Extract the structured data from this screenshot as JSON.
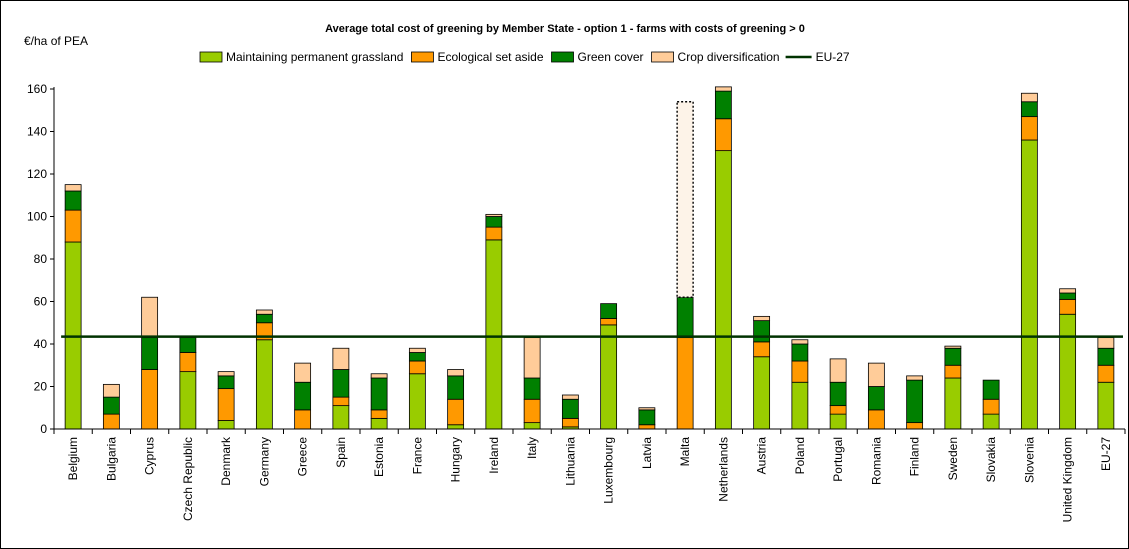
{
  "chart_data": {
    "type": "bar",
    "stacked": true,
    "title": "Average total cost of greening by Member State - option 1 - farms with costs of greening > 0",
    "ylabel": "€/ha of PEA",
    "xlabel": "",
    "ylim": [
      0,
      160
    ],
    "yticks": [
      0,
      20,
      40,
      60,
      80,
      100,
      120,
      140,
      160
    ],
    "grid": false,
    "legend_position": "top",
    "categories": [
      "Belgium",
      "Bulgaria",
      "Cyprus",
      "Czech Republic",
      "Denmark",
      "Germany",
      "Greece",
      "Spain",
      "Estonia",
      "France",
      "Hungary",
      "Ireland",
      "Italy",
      "Lithuania",
      "Luxembourg",
      "Latvia",
      "Malta",
      "Netherlands",
      "Austria",
      "Poland",
      "Portugal",
      "Romania",
      "Finland",
      "Sweden",
      "Slovakia",
      "Slovenia",
      "United Kingdom",
      "EU-27"
    ],
    "series": [
      {
        "name": "Maintaining permanent grassland",
        "color": "#99cc00",
        "values": [
          88,
          0,
          0,
          27,
          4,
          42,
          0,
          11,
          5,
          26,
          2,
          89,
          3,
          1,
          49,
          0,
          0,
          131,
          34,
          22,
          7,
          0,
          0,
          24,
          7,
          136,
          54,
          22
        ]
      },
      {
        "name": "Ecological set aside",
        "color": "#ff9900",
        "values": [
          15,
          7,
          28,
          9,
          15,
          8,
          9,
          4,
          4,
          6,
          12,
          6,
          11,
          4,
          3,
          2,
          43,
          15,
          7,
          10,
          4,
          9,
          3,
          6,
          7,
          11,
          7,
          8
        ]
      },
      {
        "name": "Green cover",
        "color": "#008000",
        "values": [
          9,
          8,
          15,
          7,
          6,
          4,
          13,
          13,
          15,
          4,
          11,
          5,
          10,
          9,
          7,
          7,
          19,
          13,
          10,
          8,
          11,
          11,
          20,
          8,
          9,
          7,
          3,
          8
        ]
      },
      {
        "name": "Crop diversification",
        "color": "#ffcc99",
        "values": [
          3,
          6,
          19,
          0,
          2,
          2,
          9,
          10,
          2,
          2,
          3,
          1,
          19,
          2,
          0,
          1,
          0,
          2,
          2,
          2,
          11,
          11,
          2,
          1,
          0,
          4,
          2,
          5
        ]
      }
    ],
    "malta_dotted_top": 154,
    "reference_line": {
      "name": "EU-27",
      "value": 43.5,
      "color": "#003300"
    }
  }
}
